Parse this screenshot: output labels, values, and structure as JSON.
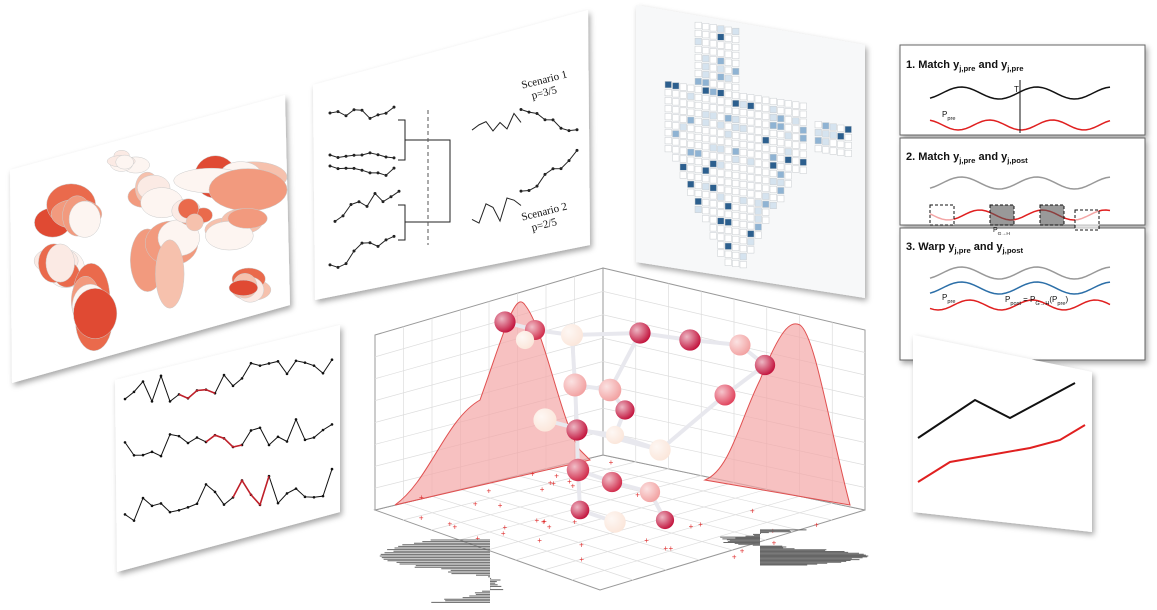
{
  "dendrogram_panel": {
    "scenarios": [
      {
        "name": "Scenario 1",
        "probability": "p=3/5"
      },
      {
        "name": "Scenario 2",
        "probability": "p=2/5"
      }
    ]
  },
  "warping_panels": [
    {
      "title": [
        {
          "text": "1. Match y",
          "sub": "j,pre"
        },
        {
          "text": " and y",
          "sub": "j,pre"
        }
      ],
      "labels": [
        [
          {
            "text": "T"
          }
        ],
        [
          {
            "text": "P",
            "sub": "pre"
          }
        ]
      ]
    },
    {
      "title": [
        {
          "text": "2. Match y",
          "sub": "j,pre"
        },
        {
          "text": " and y",
          "sub": "j,post"
        }
      ],
      "labels": [
        [
          {
            "text": "P",
            "sub": "G→H"
          }
        ]
      ]
    },
    {
      "title": [
        {
          "text": "3. Warp y",
          "sub": "j,pre"
        },
        {
          "text": " and y",
          "sub": "j,post"
        }
      ],
      "labels": [
        [
          {
            "text": "P",
            "sub": "pre"
          }
        ],
        [
          {
            "text": "P",
            "sub": "post"
          },
          {
            "text": " = P",
            "sub": "G→H"
          },
          {
            "text": "(P",
            "sub": "pre"
          },
          {
            "text": ")"
          }
        ]
      ]
    }
  ]
}
